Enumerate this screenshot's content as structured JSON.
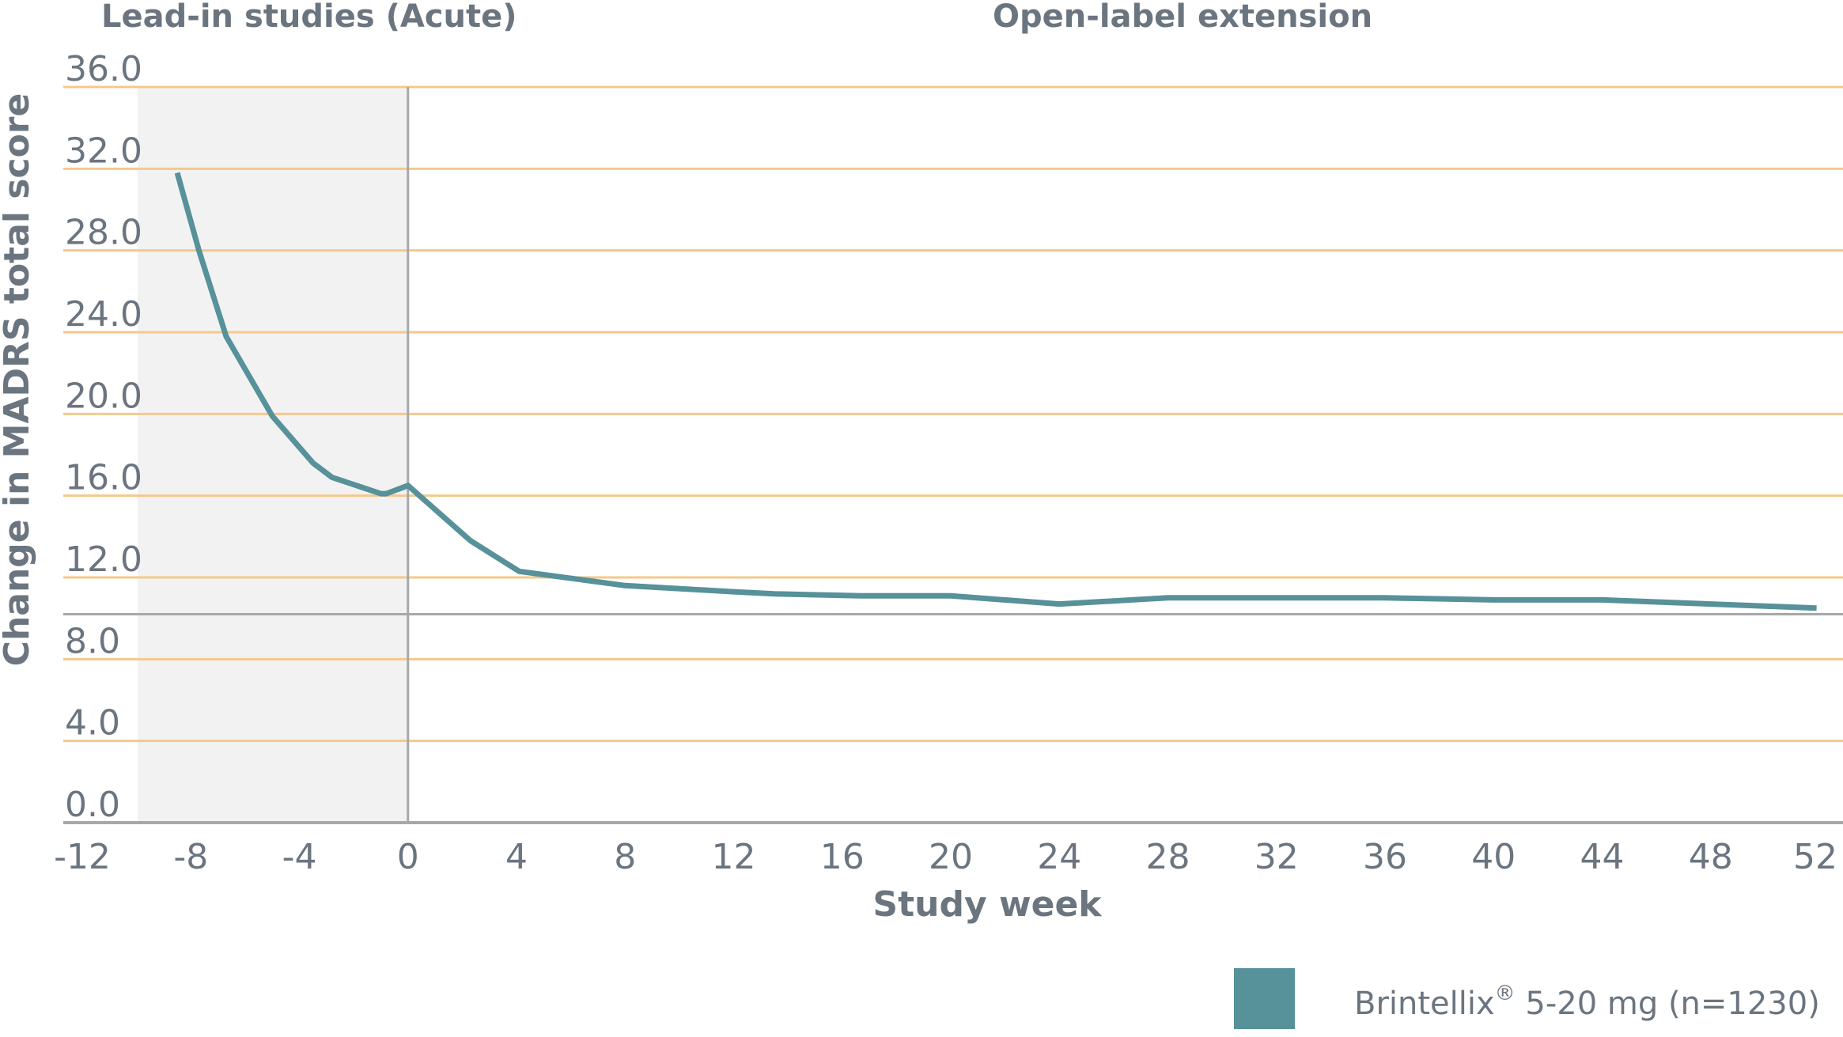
{
  "headers": {
    "left": "Lead-in studies (Acute)",
    "right": "Open-label extension"
  },
  "colors": {
    "line": "#57919a",
    "grid": "#f3c98c",
    "shade": "#f2f2f2",
    "axis": "#a8a8a8",
    "text": "#6b757f"
  },
  "legend": {
    "label": "Brintellix",
    "superscript": "®",
    "dose": " 5-20 mg (n=1230)",
    "swatch_color": "#57919a"
  },
  "chart_data": {
    "type": "line",
    "xlabel": "Study week",
    "ylabel": "Change in MADRS total score",
    "xlim": [
      -12,
      52
    ],
    "ylim": [
      0,
      36
    ],
    "x_ticks": [
      -12,
      -8,
      -4,
      0,
      4,
      8,
      12,
      16,
      20,
      24,
      28,
      32,
      36,
      40,
      44,
      48,
      52
    ],
    "x_tick_labels": [
      "-12",
      "-8",
      "-4",
      "0",
      "4",
      "8",
      "12",
      "16",
      "20",
      "24",
      "28",
      "32",
      "36",
      "40",
      "44",
      "48",
      "52"
    ],
    "y_ticks": [
      0,
      4,
      8,
      12,
      16,
      20,
      24,
      28,
      32,
      36
    ],
    "y_tick_labels": [
      "0.0",
      "4.0",
      "8.0",
      "12.0",
      "16.0",
      "20.0",
      "24.0",
      "28.0",
      "32.0",
      "36.0"
    ],
    "gridlines": "horizontal",
    "reference_line_y": 10.2,
    "shaded_x_range": [
      -12,
      0
    ],
    "series": [
      {
        "name": "Brintellix® 5-20 mg (n=1230)",
        "x": [
          -8.5,
          -7.7,
          -6.7,
          -5,
          -3.5,
          -2.8,
          -1,
          -0.8,
          0,
          2.3,
          4.1,
          8,
          12,
          13.5,
          16.7,
          20,
          24,
          28,
          32,
          36,
          40,
          44,
          48,
          51.9
        ],
        "y": [
          31.8,
          28.0,
          23.8,
          19.9,
          17.6,
          16.9,
          16.1,
          16.1,
          16.5,
          13.8,
          12.3,
          11.6,
          11.3,
          11.2,
          11.1,
          11.1,
          10.7,
          11.0,
          11.0,
          11.0,
          10.9,
          10.9,
          10.7,
          10.5
        ]
      }
    ]
  }
}
